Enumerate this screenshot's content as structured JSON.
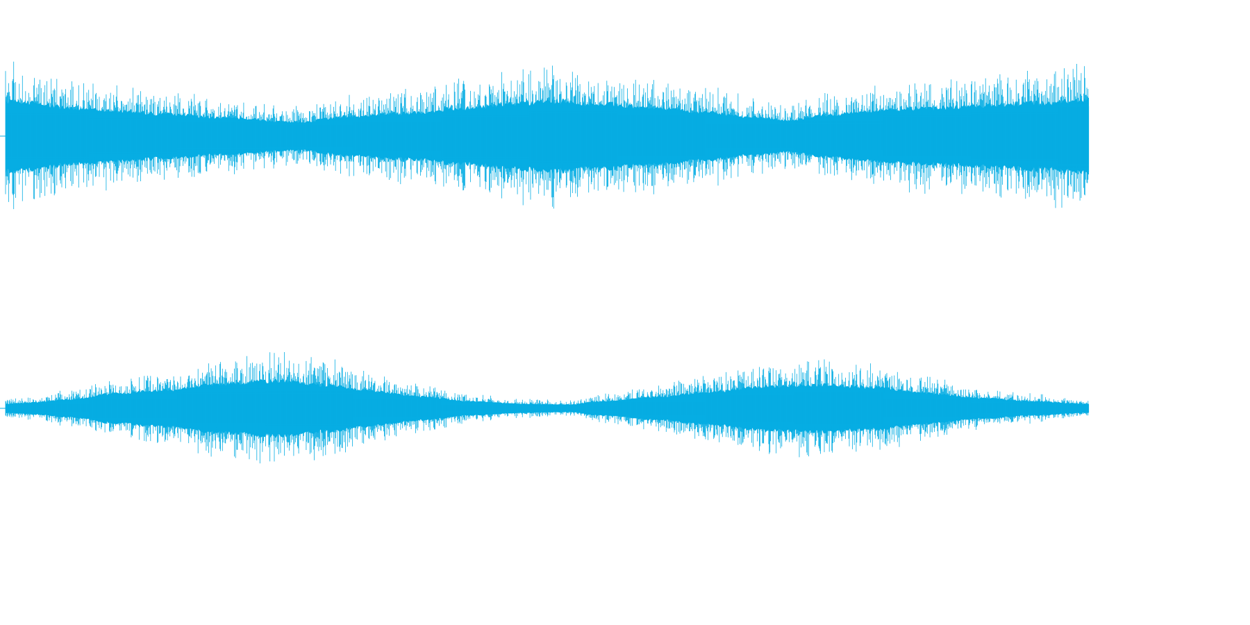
{
  "colors": {
    "background": "#ffffff",
    "waveform": "#06ade3"
  },
  "chart_data": {
    "type": "area",
    "title": "",
    "xlabel": "",
    "ylabel": "",
    "grid": false,
    "legend": "none",
    "ylim": [
      -1,
      1
    ],
    "x_range": [
      0,
      1
    ],
    "channels": [
      {
        "name": "",
        "envelope": {
          "x": [
            0,
            0.02,
            0.06,
            0.1,
            0.15,
            0.2,
            0.27,
            0.32,
            0.37,
            0.42,
            0.47,
            0.5,
            0.55,
            0.6,
            0.65,
            0.69,
            0.72,
            0.76,
            0.8,
            0.85,
            0.9,
            0.95,
            1.0
          ],
          "y": [
            0.92,
            0.88,
            0.74,
            0.66,
            0.57,
            0.48,
            0.37,
            0.52,
            0.6,
            0.72,
            0.84,
            0.92,
            0.84,
            0.74,
            0.62,
            0.5,
            0.42,
            0.55,
            0.66,
            0.72,
            0.8,
            0.86,
            0.94
          ]
        }
      },
      {
        "name": "",
        "envelope": {
          "x": [
            0,
            0.02,
            0.06,
            0.1,
            0.15,
            0.2,
            0.25,
            0.3,
            0.33,
            0.38,
            0.43,
            0.48,
            0.52,
            0.55,
            0.6,
            0.65,
            0.7,
            0.75,
            0.8,
            0.85,
            0.9,
            0.95,
            1.0
          ],
          "y": [
            0.14,
            0.18,
            0.28,
            0.46,
            0.58,
            0.78,
            0.86,
            0.72,
            0.58,
            0.38,
            0.22,
            0.14,
            0.12,
            0.22,
            0.36,
            0.52,
            0.68,
            0.74,
            0.66,
            0.48,
            0.32,
            0.22,
            0.14
          ]
        }
      }
    ]
  }
}
